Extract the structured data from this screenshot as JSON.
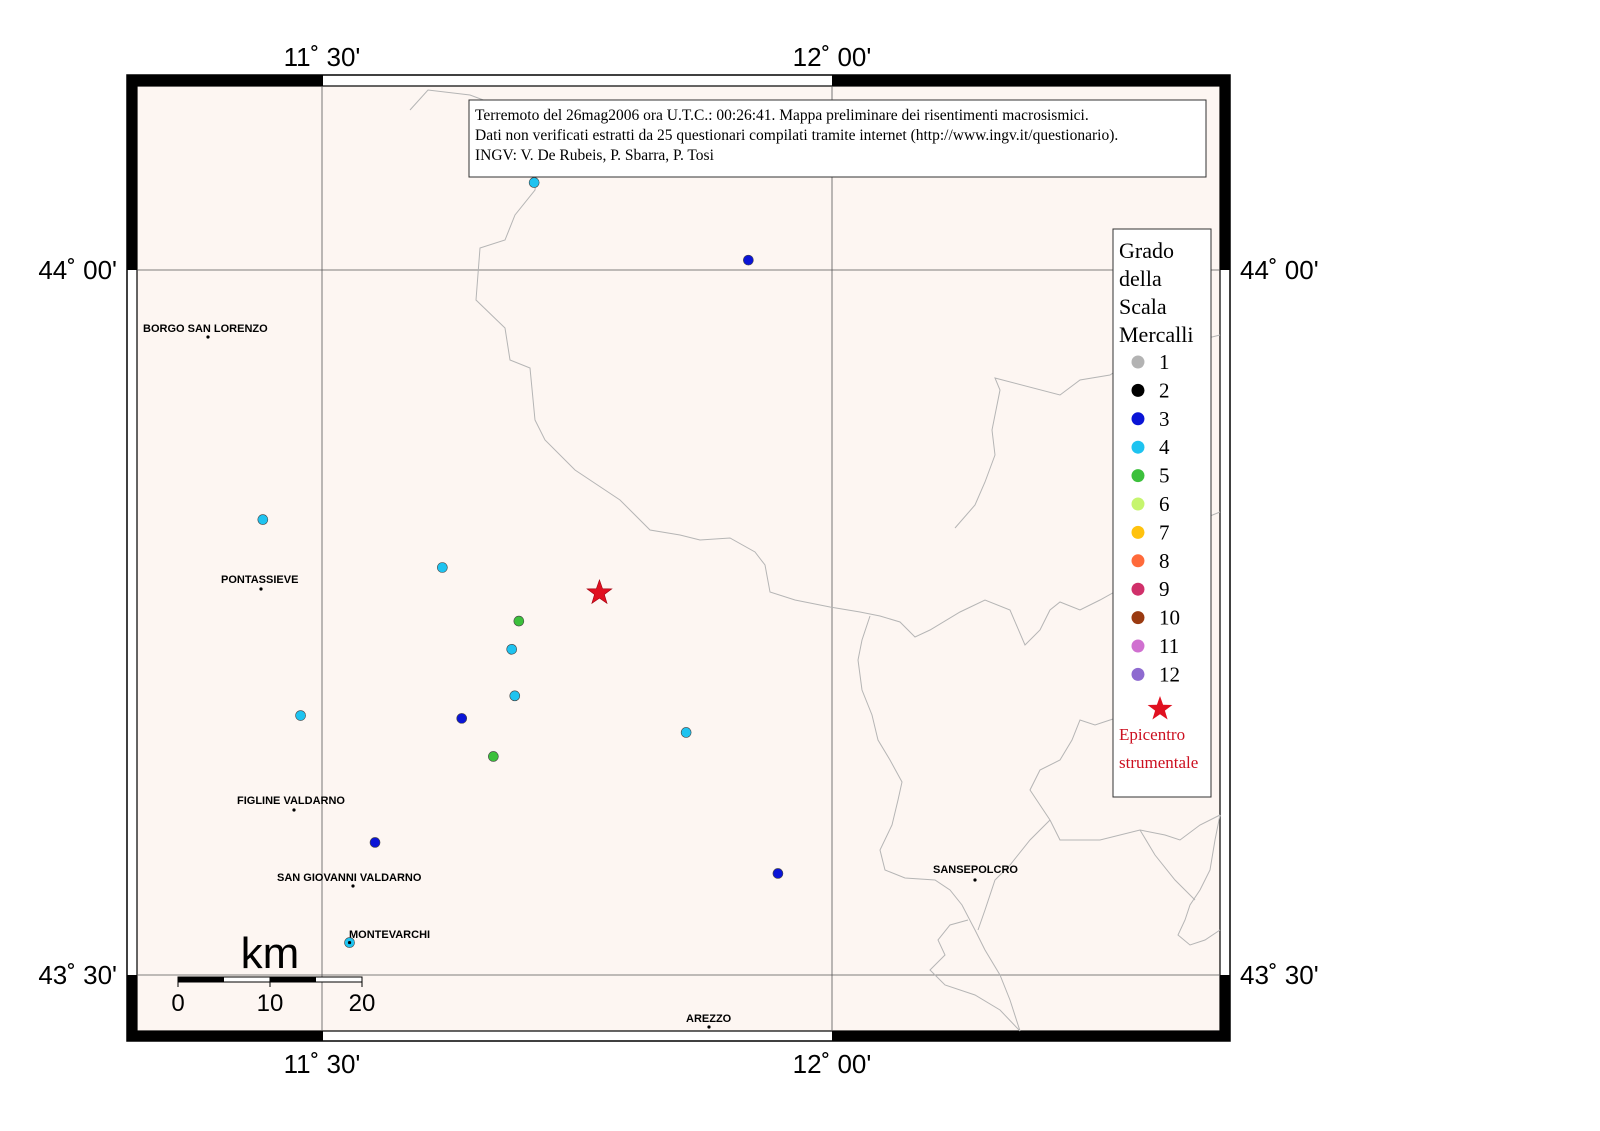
{
  "info_box": {
    "line1": "Terremoto del 26mag2006 ora U.T.C.: 00:26:41.  Mappa preliminare dei risentimenti macrosismici.",
    "line2": "Dati non verificati estratti da 25 questionari compilati tramite internet (http://www.ingv.it/questionario).",
    "line3": "INGV: V.  De Rubeis, P.  Sbarra, P.  Tosi"
  },
  "axes": {
    "top_left_label": "11˚ 30'",
    "top_right_label": "12˚ 00'",
    "bottom_left_label": "11˚ 30'",
    "bottom_right_label": "12˚ 00'",
    "left_upper_label": "44˚ 00'",
    "left_lower_label": "43˚ 30'",
    "right_upper_label": "44˚ 00'",
    "right_lower_label": "43˚ 30'"
  },
  "legend": {
    "title_line1": "Grado",
    "title_line2": "della",
    "title_line3": "Scala",
    "title_line4": "Mercalli",
    "grades": [
      {
        "label": "1",
        "color": "#b3b3b3"
      },
      {
        "label": "2",
        "color": "#000000"
      },
      {
        "label": "3",
        "color": "#0a14d6"
      },
      {
        "label": "4",
        "color": "#1ec3f0"
      },
      {
        "label": "5",
        "color": "#3cc03c"
      },
      {
        "label": "6",
        "color": "#c6f56e"
      },
      {
        "label": "7",
        "color": "#ffc20e"
      },
      {
        "label": "8",
        "color": "#ff6a3a"
      },
      {
        "label": "9",
        "color": "#d0306a"
      },
      {
        "label": "10",
        "color": "#9a3a10"
      },
      {
        "label": "11",
        "color": "#d070d0"
      },
      {
        "label": "12",
        "color": "#8e6ad0"
      }
    ],
    "epicenter_line1": "Epicentro",
    "epicenter_line2": "strumentale",
    "epicenter_color": "#e01020"
  },
  "scale_bar": {
    "unit": "km",
    "tick0": "0",
    "tick1": "10",
    "tick2": "20"
  },
  "towns": {
    "borgo": "BORGO SAN LORENZO",
    "pontassieve": "PONTASSIEVE",
    "figline": "FIGLINE VALDARNO",
    "sangiovanni": "SAN GIOVANNI VALDARNO",
    "montevarchi": "MONTEVARCHI",
    "sansepolcro": "SANSEPOLCRO",
    "arezzo": "AREZZO"
  },
  "observations": [
    {
      "grade": 4,
      "lon": 11.708,
      "lat": 44.062
    },
    {
      "grade": 3,
      "lon": 11.918,
      "lat": 44.007
    },
    {
      "grade": 4,
      "lon": 11.442,
      "lat": 43.823
    },
    {
      "grade": 4,
      "lon": 11.618,
      "lat": 43.789
    },
    {
      "grade": 5,
      "lon": 11.693,
      "lat": 43.751
    },
    {
      "grade": 4,
      "lon": 11.686,
      "lat": 43.731
    },
    {
      "grade": 4,
      "lon": 11.689,
      "lat": 43.698
    },
    {
      "grade": 4,
      "lon": 11.479,
      "lat": 43.684
    },
    {
      "grade": 3,
      "lon": 11.637,
      "lat": 43.682
    },
    {
      "grade": 5,
      "lon": 11.668,
      "lat": 43.655
    },
    {
      "grade": 4,
      "lon": 11.857,
      "lat": 43.672
    },
    {
      "grade": 3,
      "lon": 11.552,
      "lat": 43.594
    },
    {
      "grade": 3,
      "lon": 11.947,
      "lat": 43.572
    },
    {
      "grade": 4,
      "lon": 11.527,
      "lat": 43.523
    }
  ],
  "epicenter": {
    "lon": 11.772,
    "lat": 43.771
  }
}
